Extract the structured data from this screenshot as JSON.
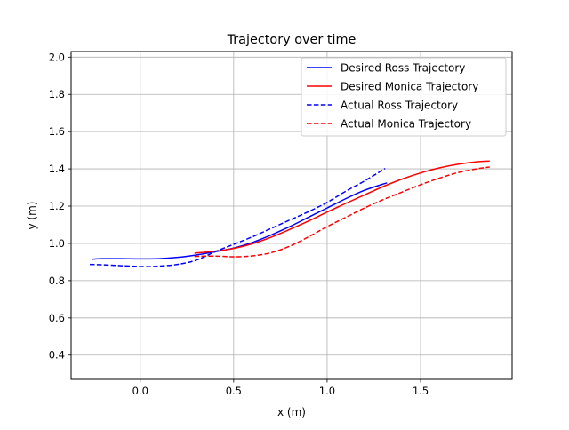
{
  "chart_data": {
    "type": "line",
    "title": "Trajectory over time",
    "xlabel": "x (m)",
    "ylabel": "y (m)",
    "xlim": [
      -0.37,
      1.99
    ],
    "ylim": [
      0.27,
      2.03
    ],
    "xticks": [
      0.0,
      0.5,
      1.0,
      1.5
    ],
    "xtick_labels": [
      "0.0",
      "0.5",
      "1.0",
      "1.5"
    ],
    "yticks": [
      0.4,
      0.6,
      0.8,
      1.0,
      1.2,
      1.4,
      1.6,
      1.8,
      2.0
    ],
    "ytick_labels": [
      "0.4",
      "0.6",
      "0.8",
      "1.0",
      "1.2",
      "1.4",
      "1.6",
      "1.8",
      "2.0"
    ],
    "grid": true,
    "legend_position": "top-right",
    "series": [
      {
        "name": "Desired Ross Trajectory",
        "color": "#0000ff",
        "linestyle": "solid",
        "x": [
          -0.26,
          -0.2,
          -0.1,
          0.0,
          0.1,
          0.2,
          0.3,
          0.4,
          0.5,
          0.6,
          0.7,
          0.8,
          0.9,
          1.0,
          1.1,
          1.2,
          1.32
        ],
        "y": [
          0.915,
          0.918,
          0.918,
          0.917,
          0.918,
          0.925,
          0.938,
          0.955,
          0.975,
          1.005,
          1.045,
          1.09,
          1.14,
          1.19,
          1.24,
          1.285,
          1.325
        ]
      },
      {
        "name": "Desired Monica Trajectory",
        "color": "#ff0000",
        "linestyle": "solid",
        "x": [
          0.29,
          0.4,
          0.5,
          0.6,
          0.7,
          0.8,
          0.9,
          1.0,
          1.1,
          1.2,
          1.3,
          1.4,
          1.5,
          1.6,
          1.7,
          1.8,
          1.87
        ],
        "y": [
          0.948,
          0.958,
          0.973,
          0.998,
          1.033,
          1.075,
          1.12,
          1.168,
          1.215,
          1.26,
          1.305,
          1.345,
          1.378,
          1.405,
          1.425,
          1.438,
          1.442
        ]
      },
      {
        "name": "Actual Ross Trajectory",
        "color": "#0000ff",
        "linestyle": "dashed",
        "x": [
          -0.27,
          -0.2,
          -0.1,
          0.0,
          0.05,
          0.1,
          0.2,
          0.3,
          0.4,
          0.5,
          0.6,
          0.7,
          0.8,
          0.9,
          1.0,
          1.1,
          1.2,
          1.31
        ],
        "y": [
          0.887,
          0.885,
          0.88,
          0.876,
          0.875,
          0.878,
          0.887,
          0.91,
          0.955,
          0.995,
          1.035,
          1.08,
          1.125,
          1.17,
          1.22,
          1.28,
          1.335,
          1.402
        ]
      },
      {
        "name": "Actual Monica Trajectory",
        "color": "#ff0000",
        "linestyle": "dashed",
        "x": [
          0.29,
          0.4,
          0.5,
          0.6,
          0.7,
          0.8,
          0.9,
          1.0,
          1.1,
          1.2,
          1.3,
          1.4,
          1.5,
          1.6,
          1.7,
          1.8,
          1.87
        ],
        "y": [
          0.93,
          0.932,
          0.928,
          0.933,
          0.95,
          0.985,
          1.035,
          1.09,
          1.14,
          1.19,
          1.235,
          1.275,
          1.315,
          1.35,
          1.38,
          1.4,
          1.41
        ]
      }
    ]
  }
}
